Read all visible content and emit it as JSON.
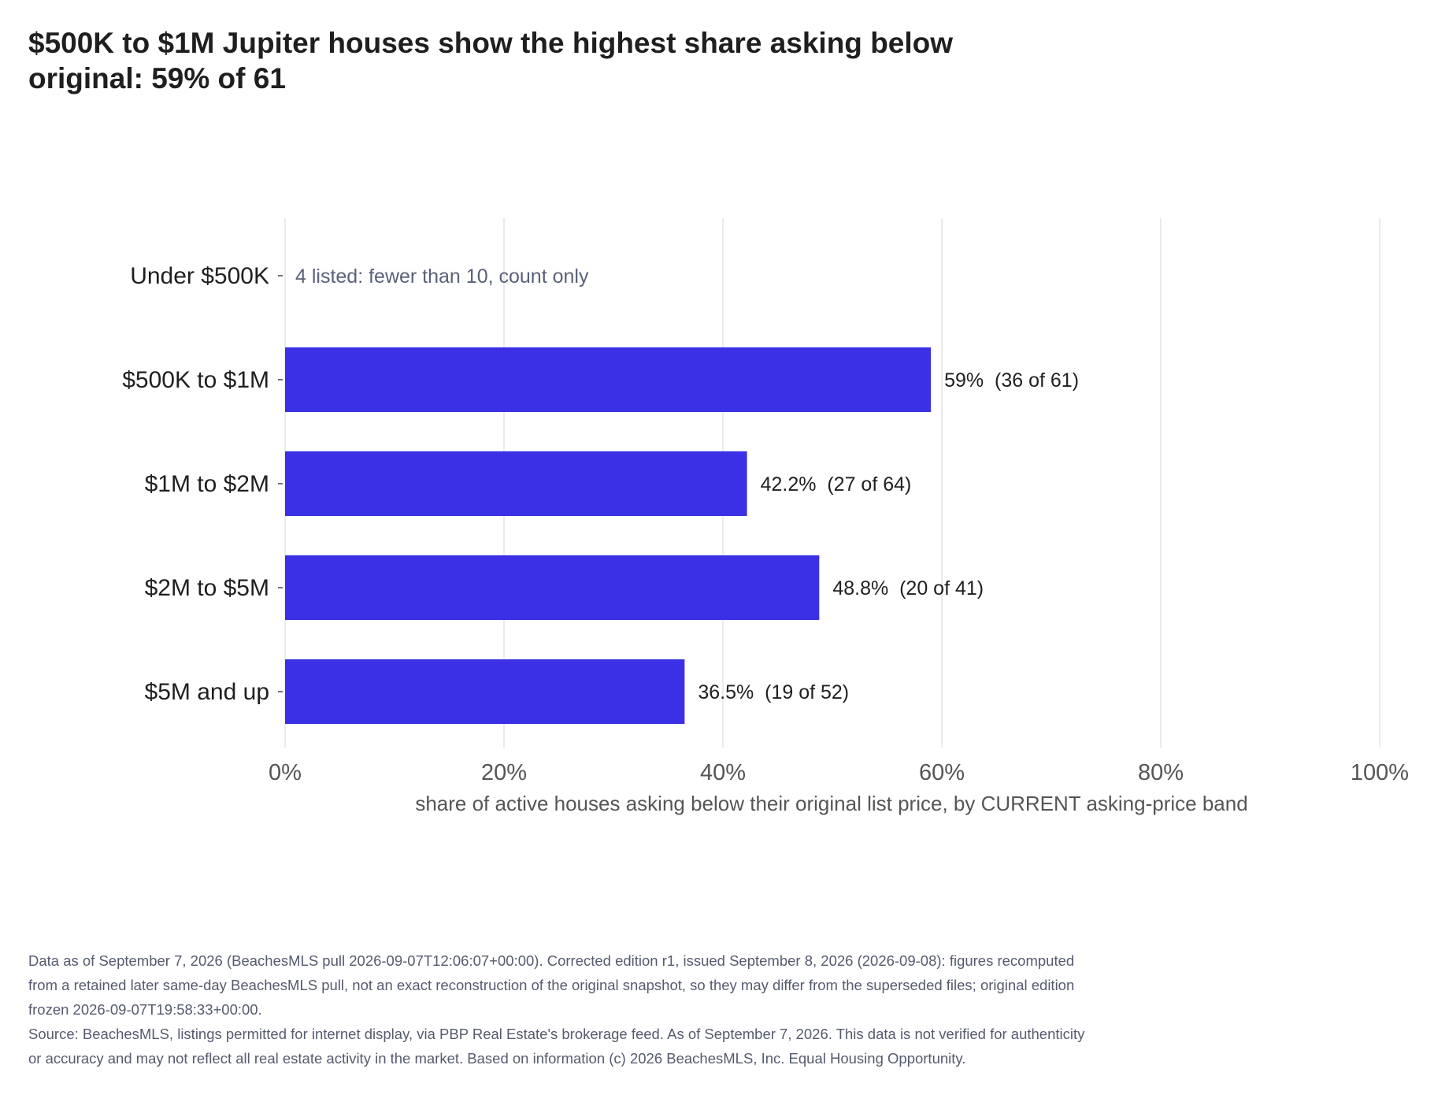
{
  "title": "$500K to $1M Jupiter houses show the highest share asking below original: 59% of 61",
  "colors": {
    "bar": "#3b30e5",
    "grid": "#e4e4ea",
    "axis_text": "#555555",
    "label_text": "#1f1f1f",
    "note_text": "#5a6178"
  },
  "chart_data": {
    "type": "bar",
    "orientation": "horizontal",
    "categories": [
      "Under $500K",
      "$500K to $1M",
      "$1M to $2M",
      "$2M to $5M",
      "$5M and up"
    ],
    "values": [
      null,
      59,
      42.2,
      48.8,
      36.5
    ],
    "bar_labels": [
      "",
      "59%  (36 of 61)",
      "42.2%  (27 of 64)",
      "48.8%  (20 of 41)",
      "36.5%  (19 of 52)"
    ],
    "notes": [
      "4 listed: fewer than 10, count only",
      "",
      "",
      "",
      ""
    ],
    "xlim": [
      0,
      100
    ],
    "xticks": [
      0,
      20,
      40,
      60,
      80,
      100
    ],
    "xtick_labels": [
      "0%",
      "20%",
      "40%",
      "60%",
      "80%",
      "100%"
    ],
    "xlabel": "share of active houses asking below their original list price, by CURRENT asking-price band",
    "grid": true
  },
  "footnote": {
    "line1": "Data as of September 7, 2026 (BeachesMLS pull 2026-09-07T12:06:07+00:00). Corrected edition r1, issued September 8, 2026 (2026-09-08): figures recomputed from a retained later same-day BeachesMLS pull, not an exact reconstruction of the original snapshot, so they may differ from the superseded files; original edition frozen 2026-09-07T19:58:33+00:00.",
    "line2": "Source: BeachesMLS, listings permitted for internet display, via PBP Real Estate's brokerage feed. As of September 7, 2026. This data is not verified for authenticity or accuracy and may not reflect all real estate activity in the market. Based on information (c) 2026 BeachesMLS, Inc. Equal Housing Opportunity."
  }
}
